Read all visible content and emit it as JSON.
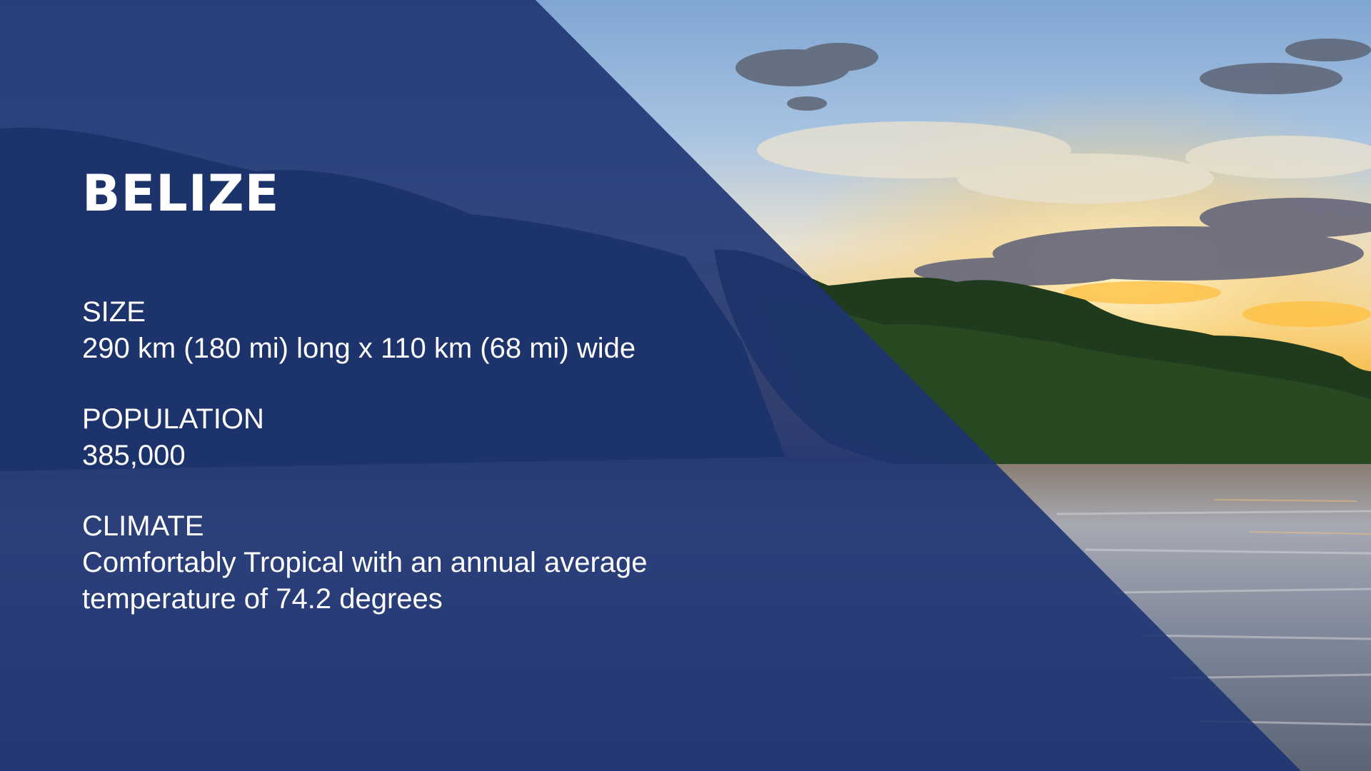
{
  "slide": {
    "title": "BELIZE",
    "sections": [
      {
        "label": "SIZE",
        "value": "290 km (180 mi) long x 110 km (68 mi) wide"
      },
      {
        "label": "POPULATION",
        "value": "385,000"
      },
      {
        "label": "CLIMATE",
        "value_lines": [
          "Comfortably Tropical with an annual average",
          "temperature of 74.2 degrees"
        ]
      }
    ]
  },
  "colors": {
    "overlay": "#1e3473",
    "text": "#ffffff",
    "sky_top": "#8fb2d8",
    "sunset": "#f6b53d",
    "foliage": "#1f3a1c",
    "water": "#6f7e94"
  },
  "background_image": "sunset-mangrove-shoreline-photo"
}
